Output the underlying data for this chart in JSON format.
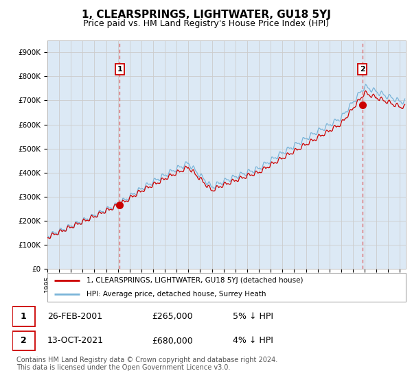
{
  "title": "1, CLEARSPRINGS, LIGHTWATER, GU18 5YJ",
  "subtitle": "Price paid vs. HM Land Registry's House Price Index (HPI)",
  "title_fontsize": 11,
  "subtitle_fontsize": 9,
  "bg_color": "#dce9f5",
  "hpi_color": "#7ab4d8",
  "price_color": "#cc0000",
  "marker_color": "#cc0000",
  "vline_color": "#dd4444",
  "grid_color": "#cccccc",
  "ylim": [
    0,
    950000
  ],
  "yticks": [
    0,
    100000,
    200000,
    300000,
    400000,
    500000,
    600000,
    700000,
    800000,
    900000
  ],
  "ytick_labels": [
    "£0",
    "£100K",
    "£200K",
    "£300K",
    "£400K",
    "£500K",
    "£600K",
    "£700K",
    "£800K",
    "£900K"
  ],
  "xlim_start": 1995.0,
  "xlim_end": 2025.5,
  "sale1_x": 2001.15,
  "sale1_y": 265000,
  "sale2_x": 2021.79,
  "sale2_y": 680000,
  "legend_line1": "1, CLEARSPRINGS, LIGHTWATER, GU18 5YJ (detached house)",
  "legend_line2": "HPI: Average price, detached house, Surrey Heath",
  "table_row1": [
    "1",
    "26-FEB-2001",
    "£265,000",
    "5% ↓ HPI"
  ],
  "table_row2": [
    "2",
    "13-OCT-2021",
    "£680,000",
    "4% ↓ HPI"
  ],
  "footnote": "Contains HM Land Registry data © Crown copyright and database right 2024.\nThis data is licensed under the Open Government Licence v3.0.",
  "footnote_fontsize": 7,
  "label_fontsize": 7.5
}
